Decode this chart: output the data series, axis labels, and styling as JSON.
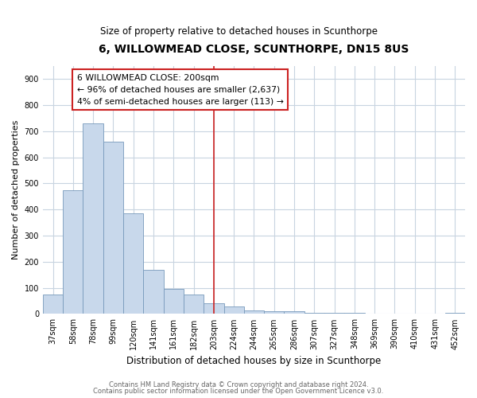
{
  "title": "6, WILLOWMEAD CLOSE, SCUNTHORPE, DN15 8US",
  "subtitle": "Size of property relative to detached houses in Scunthorpe",
  "xlabel": "Distribution of detached houses by size in Scunthorpe",
  "ylabel": "Number of detached properties",
  "bin_labels": [
    "37sqm",
    "58sqm",
    "78sqm",
    "99sqm",
    "120sqm",
    "141sqm",
    "161sqm",
    "182sqm",
    "203sqm",
    "224sqm",
    "244sqm",
    "265sqm",
    "286sqm",
    "307sqm",
    "327sqm",
    "348sqm",
    "369sqm",
    "390sqm",
    "410sqm",
    "431sqm",
    "452sqm"
  ],
  "bar_values": [
    75,
    475,
    730,
    660,
    385,
    170,
    97,
    75,
    40,
    30,
    15,
    10,
    10,
    5,
    3,
    3,
    2,
    1,
    0,
    0,
    5
  ],
  "bar_color": "#c8d8eb",
  "bar_edge_color": "#7799bb",
  "vline_x": 8,
  "vline_color": "#cc2222",
  "annotation_title": "6 WILLOWMEAD CLOSE: 200sqm",
  "annotation_line1": "← 96% of detached houses are smaller (2,637)",
  "annotation_line2": "4% of semi-detached houses are larger (113) →",
  "annotation_box_facecolor": "#ffffff",
  "annotation_box_edgecolor": "#cc2222",
  "ylim": [
    0,
    950
  ],
  "yticks": [
    0,
    100,
    200,
    300,
    400,
    500,
    600,
    700,
    800,
    900
  ],
  "footer_line1": "Contains HM Land Registry data © Crown copyright and database right 2024.",
  "footer_line2": "Contains public sector information licensed under the Open Government Licence v3.0.",
  "plot_bg_color": "#ffffff",
  "fig_bg_color": "#ffffff",
  "grid_color": "#c8d4e0",
  "title_fontsize": 10,
  "subtitle_fontsize": 8.5,
  "tick_fontsize": 7,
  "ylabel_fontsize": 8,
  "xlabel_fontsize": 8.5
}
